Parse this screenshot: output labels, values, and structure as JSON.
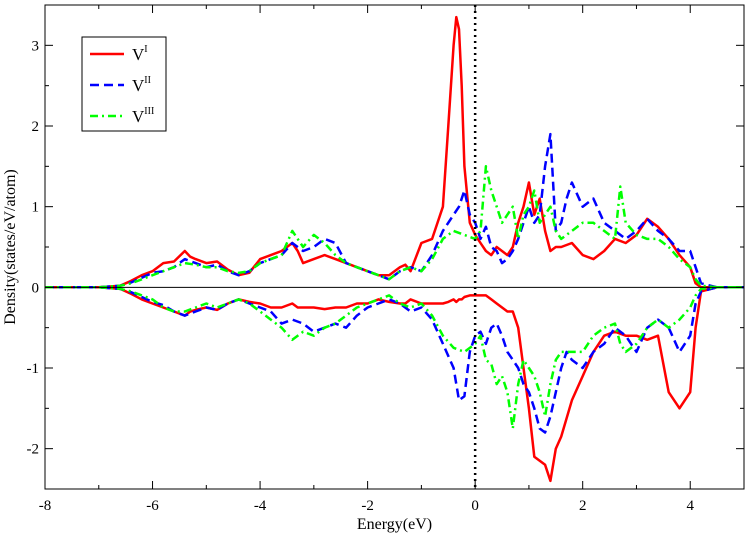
{
  "chart_data": {
    "type": "line",
    "title": "",
    "xlabel": "Energy(eV)",
    "ylabel": "Density(states/eV/atom)",
    "xlim": [
      -8,
      5
    ],
    "ylim": [
      -2.5,
      3.5
    ],
    "x_ticks": [
      -8,
      -6,
      -4,
      -2,
      0,
      2,
      4
    ],
    "y_ticks": [
      -2,
      -1,
      0,
      1,
      2,
      3
    ],
    "grid": false,
    "legend_position": "top-left",
    "reference_lines": [
      {
        "orientation": "vertical",
        "at": 0,
        "style": "dotted",
        "color": "#000000"
      },
      {
        "orientation": "horizontal",
        "at": 0,
        "style": "solid",
        "color": "#000000"
      }
    ],
    "series": [
      {
        "name": "V",
        "name_superscript": "I",
        "color": "#ff0000",
        "dash": "solid",
        "x": [
          -8,
          -7,
          -6.6,
          -6.4,
          -6.2,
          -6.0,
          -5.8,
          -5.6,
          -5.4,
          -5.3,
          -5.2,
          -5.0,
          -4.8,
          -4.6,
          -4.4,
          -4.2,
          -4.0,
          -3.8,
          -3.6,
          -3.4,
          -3.3,
          -3.2,
          -3.0,
          -2.8,
          -2.6,
          -2.4,
          -2.2,
          -2.0,
          -1.8,
          -1.6,
          -1.4,
          -1.3,
          -1.2,
          -1.0,
          -0.8,
          -0.6,
          -0.5,
          -0.4,
          -0.35,
          -0.3,
          -0.25,
          -0.2,
          -0.1,
          0.0,
          0.1,
          0.2,
          0.3,
          0.4,
          0.6,
          0.7,
          0.8,
          0.9,
          1.0,
          1.1,
          1.2,
          1.3,
          1.4,
          1.5,
          1.6,
          1.8,
          2.0,
          2.2,
          2.4,
          2.6,
          2.8,
          3.0,
          3.2,
          3.4,
          3.6,
          3.8,
          4.0,
          4.1,
          4.2,
          4.5,
          5.0
        ],
        "up": [
          0,
          0,
          0.02,
          0.08,
          0.15,
          0.2,
          0.3,
          0.32,
          0.45,
          0.38,
          0.35,
          0.3,
          0.32,
          0.22,
          0.15,
          0.18,
          0.35,
          0.4,
          0.45,
          0.55,
          0.45,
          0.3,
          0.35,
          0.4,
          0.35,
          0.3,
          0.25,
          0.2,
          0.15,
          0.15,
          0.25,
          0.28,
          0.2,
          0.55,
          0.6,
          1.0,
          2.0,
          3.0,
          3.35,
          3.2,
          2.5,
          1.5,
          0.8,
          0.65,
          0.55,
          0.45,
          0.4,
          0.5,
          0.4,
          0.5,
          0.8,
          1.0,
          1.3,
          0.9,
          1.1,
          0.7,
          0.45,
          0.5,
          0.5,
          0.55,
          0.4,
          0.35,
          0.45,
          0.6,
          0.55,
          0.65,
          0.85,
          0.75,
          0.6,
          0.4,
          0.25,
          0.05,
          0,
          0,
          0
        ],
        "down": [
          0,
          0,
          -0.02,
          -0.08,
          -0.15,
          -0.2,
          -0.25,
          -0.3,
          -0.35,
          -0.3,
          -0.28,
          -0.25,
          -0.28,
          -0.2,
          -0.15,
          -0.18,
          -0.2,
          -0.25,
          -0.25,
          -0.2,
          -0.25,
          -0.25,
          -0.25,
          -0.27,
          -0.25,
          -0.25,
          -0.2,
          -0.2,
          -0.15,
          -0.18,
          -0.2,
          -0.2,
          -0.15,
          -0.2,
          -0.2,
          -0.2,
          -0.18,
          -0.15,
          -0.18,
          -0.15,
          -0.15,
          -0.12,
          -0.1,
          -0.1,
          -0.1,
          -0.1,
          -0.15,
          -0.2,
          -0.3,
          -0.3,
          -0.5,
          -1.0,
          -1.5,
          -2.1,
          -2.15,
          -2.2,
          -2.4,
          -2.0,
          -1.85,
          -1.4,
          -1.1,
          -0.8,
          -0.6,
          -0.55,
          -0.6,
          -0.6,
          -0.65,
          -0.6,
          -1.3,
          -1.5,
          -1.3,
          -0.5,
          -0.05,
          0,
          0
        ]
      },
      {
        "name": "V",
        "name_superscript": "II",
        "color": "#0000ff",
        "dash": "dashed",
        "x": [
          -8,
          -7,
          -6.6,
          -6.4,
          -6.2,
          -6.0,
          -5.8,
          -5.6,
          -5.4,
          -5.2,
          -5.0,
          -4.8,
          -4.6,
          -4.4,
          -4.2,
          -4.0,
          -3.8,
          -3.6,
          -3.4,
          -3.2,
          -3.0,
          -2.8,
          -2.6,
          -2.4,
          -2.2,
          -2.0,
          -1.8,
          -1.6,
          -1.4,
          -1.2,
          -1.0,
          -0.8,
          -0.6,
          -0.4,
          -0.3,
          -0.2,
          -0.1,
          0.0,
          0.1,
          0.2,
          0.3,
          0.4,
          0.5,
          0.6,
          0.7,
          0.8,
          0.9,
          1.0,
          1.1,
          1.2,
          1.3,
          1.4,
          1.5,
          1.6,
          1.7,
          1.8,
          2.0,
          2.2,
          2.4,
          2.6,
          2.8,
          3.0,
          3.2,
          3.4,
          3.6,
          3.8,
          4.0,
          4.1,
          4.2,
          4.5,
          5.0
        ],
        "up": [
          0,
          0,
          0.02,
          0.06,
          0.12,
          0.18,
          0.2,
          0.25,
          0.35,
          0.3,
          0.25,
          0.28,
          0.2,
          0.15,
          0.2,
          0.3,
          0.35,
          0.4,
          0.55,
          0.45,
          0.5,
          0.6,
          0.55,
          0.3,
          0.25,
          0.2,
          0.15,
          0.1,
          0.2,
          0.25,
          0.2,
          0.4,
          0.7,
          0.9,
          1.0,
          1.2,
          0.9,
          0.8,
          0.6,
          0.75,
          0.5,
          0.45,
          0.3,
          0.35,
          0.45,
          0.6,
          0.8,
          1.0,
          0.8,
          0.9,
          1.5,
          1.9,
          0.7,
          0.8,
          1.1,
          1.3,
          1.0,
          1.1,
          0.8,
          0.7,
          0.6,
          0.7,
          0.85,
          0.7,
          0.6,
          0.45,
          0.45,
          0.25,
          0.05,
          0,
          0
        ],
        "down": [
          0,
          0,
          -0.02,
          -0.06,
          -0.12,
          -0.18,
          -0.22,
          -0.3,
          -0.35,
          -0.3,
          -0.25,
          -0.28,
          -0.2,
          -0.15,
          -0.2,
          -0.25,
          -0.3,
          -0.45,
          -0.4,
          -0.45,
          -0.55,
          -0.5,
          -0.45,
          -0.5,
          -0.35,
          -0.25,
          -0.2,
          -0.15,
          -0.2,
          -0.3,
          -0.25,
          -0.4,
          -0.7,
          -1.0,
          -1.4,
          -1.35,
          -0.8,
          -0.6,
          -0.55,
          -0.7,
          -0.5,
          -0.45,
          -0.6,
          -0.8,
          -0.9,
          -1.0,
          -1.2,
          -1.3,
          -1.5,
          -1.75,
          -1.8,
          -1.6,
          -1.3,
          -1.0,
          -0.8,
          -0.9,
          -1.0,
          -0.8,
          -0.7,
          -0.5,
          -0.6,
          -0.8,
          -0.5,
          -0.4,
          -0.5,
          -0.8,
          -0.6,
          -0.2,
          -0.05,
          0,
          0
        ]
      },
      {
        "name": "V",
        "name_superscript": "III",
        "color": "#00ff00",
        "dash": "dash-dot",
        "x": [
          -8,
          -7,
          -6.6,
          -6.4,
          -6.2,
          -6.0,
          -5.8,
          -5.6,
          -5.4,
          -5.2,
          -5.0,
          -4.8,
          -4.6,
          -4.4,
          -4.2,
          -4.0,
          -3.8,
          -3.6,
          -3.4,
          -3.3,
          -3.2,
          -3.0,
          -2.8,
          -2.6,
          -2.4,
          -2.2,
          -2.0,
          -1.8,
          -1.6,
          -1.4,
          -1.2,
          -1.0,
          -0.8,
          -0.6,
          -0.4,
          -0.2,
          0.0,
          0.1,
          0.2,
          0.3,
          0.4,
          0.5,
          0.6,
          0.7,
          0.8,
          0.9,
          1.0,
          1.1,
          1.2,
          1.3,
          1.4,
          1.5,
          1.6,
          1.8,
          2.0,
          2.2,
          2.4,
          2.6,
          2.7,
          2.8,
          3.0,
          3.2,
          3.4,
          3.6,
          3.8,
          4.0,
          4.1,
          4.2,
          4.5,
          5.0
        ],
        "up": [
          0,
          0,
          0.02,
          0.05,
          0.1,
          0.15,
          0.2,
          0.25,
          0.3,
          0.28,
          0.25,
          0.25,
          0.2,
          0.18,
          0.2,
          0.3,
          0.35,
          0.4,
          0.7,
          0.6,
          0.5,
          0.65,
          0.55,
          0.4,
          0.3,
          0.25,
          0.2,
          0.15,
          0.1,
          0.2,
          0.25,
          0.2,
          0.35,
          0.6,
          0.7,
          0.65,
          0.6,
          0.7,
          1.5,
          1.2,
          1.0,
          0.8,
          0.9,
          1.0,
          0.6,
          0.9,
          1.0,
          1.2,
          0.8,
          0.9,
          1.0,
          0.7,
          0.6,
          0.7,
          0.8,
          0.8,
          0.7,
          0.6,
          1.25,
          0.8,
          0.65,
          0.6,
          0.6,
          0.5,
          0.35,
          0.25,
          0.1,
          0.02,
          0,
          0
        ],
        "down": [
          0,
          0,
          -0.02,
          -0.05,
          -0.1,
          -0.15,
          -0.25,
          -0.3,
          -0.3,
          -0.25,
          -0.2,
          -0.25,
          -0.2,
          -0.15,
          -0.2,
          -0.3,
          -0.4,
          -0.5,
          -0.65,
          -0.6,
          -0.55,
          -0.6,
          -0.5,
          -0.45,
          -0.35,
          -0.25,
          -0.2,
          -0.15,
          -0.1,
          -0.2,
          -0.25,
          -0.2,
          -0.35,
          -0.6,
          -0.75,
          -0.8,
          -0.7,
          -0.6,
          -0.9,
          -0.95,
          -1.2,
          -1.1,
          -1.3,
          -1.75,
          -1.2,
          -0.9,
          -1.0,
          -1.1,
          -1.3,
          -1.6,
          -1.2,
          -0.9,
          -0.8,
          -0.8,
          -0.8,
          -0.6,
          -0.5,
          -0.45,
          -0.7,
          -0.8,
          -0.7,
          -0.5,
          -0.4,
          -0.5,
          -0.4,
          -0.25,
          -0.1,
          -0.02,
          0,
          0
        ]
      }
    ]
  }
}
